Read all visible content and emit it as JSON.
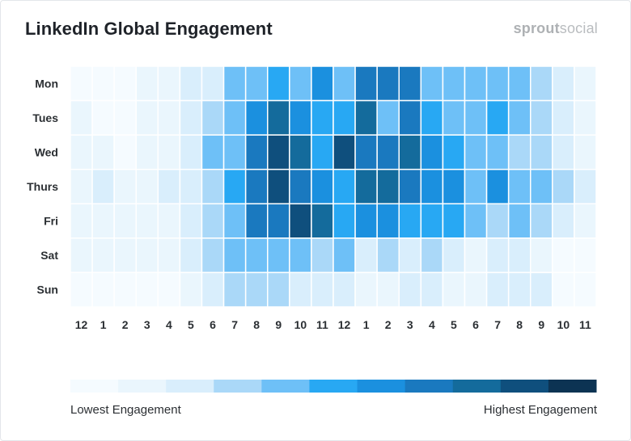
{
  "header": {
    "title": "LinkedIn Global Engagement",
    "brand_part1": "sprout",
    "brand_part2": "social"
  },
  "legend": {
    "low_label": "Lowest Engagement",
    "high_label": "Highest Engagement",
    "levels": 11
  },
  "colors": {
    "scale": [
      "#f5fbff",
      "#eaf6fd",
      "#d9eefc",
      "#aad8f8",
      "#6ec0f7",
      "#28a8f3",
      "#1b90df",
      "#1a79bf",
      "#146b9c",
      "#0f4f7d",
      "#0c3353"
    ]
  },
  "chart_data": {
    "type": "heatmap",
    "title": "LinkedIn Global Engagement",
    "y": [
      "Mon",
      "Tues",
      "Wed",
      "Thurs",
      "Fri",
      "Sat",
      "Sun"
    ],
    "x": [
      "12",
      "1",
      "2",
      "3",
      "4",
      "5",
      "6",
      "7",
      "8",
      "9",
      "10",
      "11",
      "12",
      "1",
      "2",
      "3",
      "4",
      "5",
      "6",
      "7",
      "8",
      "9",
      "10",
      "11"
    ],
    "value_scale": "engagement level 0 (lowest) to 10 (highest)",
    "values": [
      [
        0,
        0,
        0,
        1,
        1,
        2,
        2,
        4,
        4,
        5,
        4,
        6,
        4,
        7,
        7,
        7,
        4,
        4,
        4,
        4,
        4,
        3,
        2,
        1
      ],
      [
        1,
        0,
        0,
        1,
        1,
        2,
        3,
        4,
        6,
        8,
        6,
        5,
        5,
        8,
        4,
        7,
        5,
        4,
        4,
        5,
        4,
        3,
        2,
        1
      ],
      [
        1,
        1,
        0,
        1,
        1,
        2,
        4,
        4,
        7,
        9,
        8,
        5,
        9,
        7,
        7,
        8,
        6,
        5,
        4,
        4,
        3,
        3,
        2,
        1
      ],
      [
        1,
        2,
        1,
        1,
        2,
        2,
        3,
        5,
        7,
        9,
        7,
        6,
        5,
        8,
        8,
        7,
        6,
        6,
        4,
        6,
        4,
        4,
        3,
        2
      ],
      [
        1,
        1,
        1,
        1,
        1,
        2,
        3,
        4,
        7,
        7,
        9,
        8,
        5,
        6,
        6,
        5,
        5,
        5,
        4,
        3,
        4,
        3,
        2,
        1
      ],
      [
        1,
        1,
        1,
        1,
        1,
        2,
        3,
        4,
        4,
        4,
        4,
        3,
        4,
        2,
        3,
        2,
        3,
        2,
        1,
        2,
        2,
        1,
        0,
        0
      ],
      [
        0,
        0,
        0,
        0,
        0,
        1,
        2,
        3,
        3,
        3,
        2,
        2,
        2,
        1,
        1,
        2,
        2,
        1,
        1,
        2,
        2,
        2,
        0,
        0
      ]
    ]
  }
}
